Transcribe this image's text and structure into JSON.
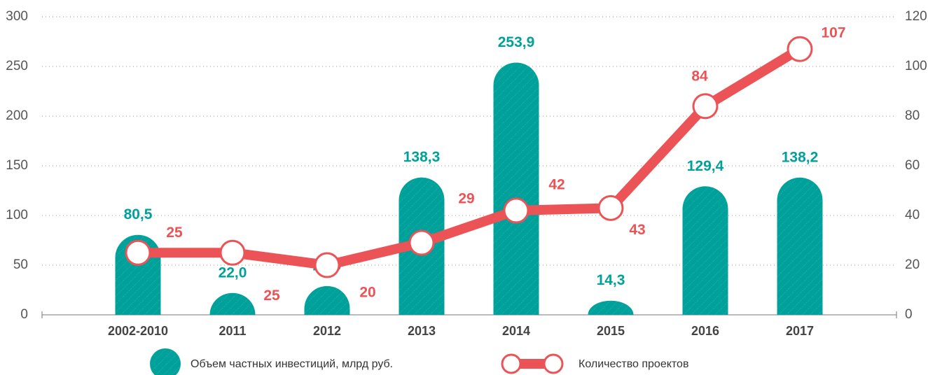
{
  "chart_data": {
    "type": "bar",
    "categories": [
      "2002-2010",
      "2011",
      "2012",
      "2013",
      "2014",
      "2015",
      "2016",
      "2017"
    ],
    "series": [
      {
        "name": "Объем частных инвестиций, млрд руб.",
        "type": "bar",
        "color": "#00a19a",
        "values": [
          80.5,
          22.0,
          29.0,
          138.3,
          253.9,
          14.3,
          129.4,
          138.2
        ],
        "value_labels": [
          "80,5",
          "22,0",
          "29,0",
          "138,3",
          "253,9",
          "14,3",
          "129,4",
          "138,2"
        ]
      },
      {
        "name": "Количество проектов",
        "type": "line",
        "axis": "y2",
        "color": "#ec5356",
        "values": [
          25,
          25,
          20,
          29,
          42,
          43,
          84,
          107
        ]
      }
    ],
    "ylim": [
      0,
      300
    ],
    "yticks": [
      0,
      50,
      100,
      150,
      200,
      250,
      300
    ],
    "y2lim": [
      0,
      120
    ],
    "y2ticks": [
      0,
      20,
      40,
      60,
      80,
      100,
      120
    ],
    "grid": true,
    "legend": "bottom"
  }
}
